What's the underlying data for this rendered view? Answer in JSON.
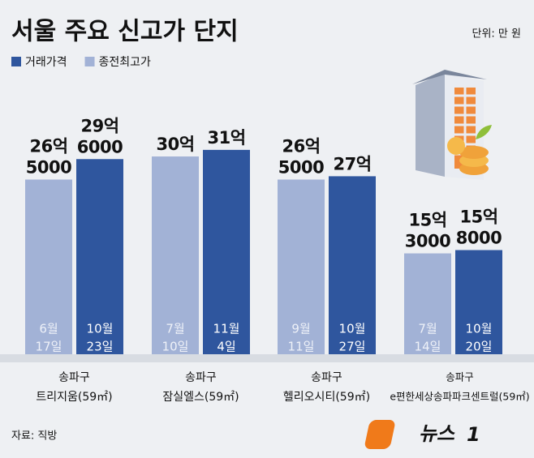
{
  "chart_data": {
    "type": "bar",
    "title": "서울 주요 신고가 단지",
    "unit": "단위: 만 원",
    "source": "자료: 직방",
    "logo": [
      "뉴스",
      "1"
    ],
    "categories": [
      [
        "송파구",
        "트리지움(59㎡)"
      ],
      [
        "송파구",
        "잠실엘스(59㎡)"
      ],
      [
        "송파구",
        "헬리오시티(59㎡)"
      ],
      [
        "송파구",
        "e편한세상송파파크센트럴(59㎡)"
      ]
    ],
    "ylim": [
      0,
      340000
    ],
    "series": [
      {
        "name": "거래가격",
        "color": "#2f569e",
        "values": [
          296000,
          310000,
          270000,
          158000
        ],
        "value_labels": [
          [
            "29억",
            "6000"
          ],
          [
            "31억"
          ],
          [
            "27억"
          ],
          [
            "15억",
            "8000"
          ]
        ],
        "dates": [
          [
            "10월",
            "23일"
          ],
          [
            "11월",
            "4일"
          ],
          [
            "10월",
            "27일"
          ],
          [
            "10월",
            "20일"
          ]
        ]
      },
      {
        "name": "종전최고가",
        "color": "#a2b2d6",
        "values": [
          265000,
          300000,
          265000,
          153000
        ],
        "value_labels": [
          [
            "26억",
            "5000"
          ],
          [
            "30억"
          ],
          [
            "26억",
            "5000"
          ],
          [
            "15억",
            "3000"
          ]
        ],
        "dates": [
          [
            "6월",
            "17일"
          ],
          [
            "7월",
            "10일"
          ],
          [
            "9월",
            "11일"
          ],
          [
            "7월",
            "14일"
          ]
        ]
      }
    ]
  }
}
